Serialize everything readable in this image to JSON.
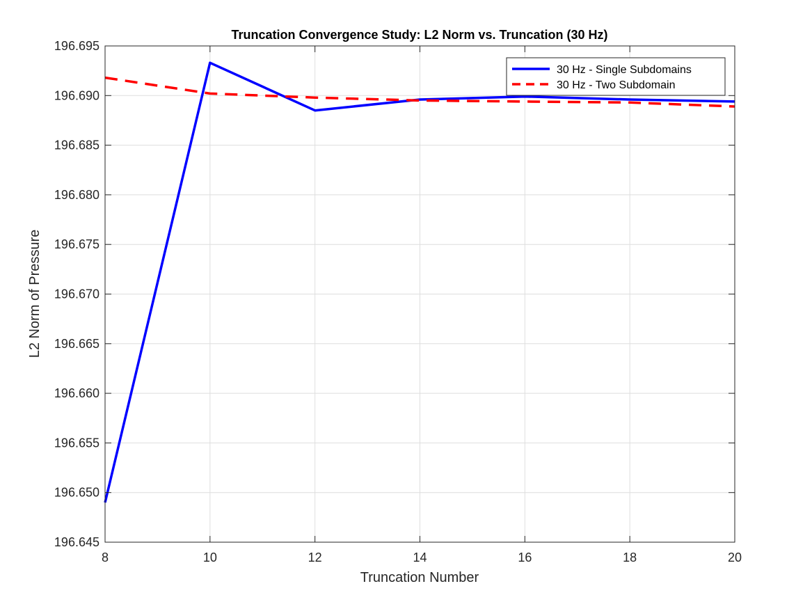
{
  "chart_data": {
    "type": "line",
    "title": "Truncation Convergence Study: L2 Norm vs. Truncation (30 Hz)",
    "xlabel": "Truncation Number",
    "ylabel": "L2 Norm of Pressure",
    "xlim": [
      8,
      20
    ],
    "ylim": [
      196.645,
      196.695
    ],
    "xticks": [
      8,
      10,
      12,
      14,
      16,
      18,
      20
    ],
    "xtick_labels": [
      "8",
      "10",
      "12",
      "14",
      "16",
      "18",
      "20"
    ],
    "yticks": [
      196.645,
      196.65,
      196.655,
      196.66,
      196.665,
      196.67,
      196.675,
      196.68,
      196.685,
      196.69,
      196.695
    ],
    "ytick_labels": [
      "196.645",
      "196.650",
      "196.655",
      "196.660",
      "196.665",
      "196.670",
      "196.675",
      "196.680",
      "196.685",
      "196.690",
      "196.695"
    ],
    "grid": true,
    "legend_position": "top-right",
    "series": [
      {
        "name": "30 Hz - Single Subdomains",
        "color": "#0000ff",
        "style": "solid",
        "x": [
          8,
          10,
          12,
          14,
          16,
          18,
          20
        ],
        "values": [
          196.649,
          196.6933,
          196.6885,
          196.6896,
          196.6899,
          196.6896,
          196.6894
        ]
      },
      {
        "name": "30 Hz - Two Subdomain",
        "color": "#ff0000",
        "style": "dashed",
        "x": [
          8,
          10,
          12,
          14,
          16,
          18,
          20
        ],
        "values": [
          196.6918,
          196.6902,
          196.6898,
          196.6895,
          196.6894,
          196.6893,
          196.6889
        ]
      }
    ]
  }
}
